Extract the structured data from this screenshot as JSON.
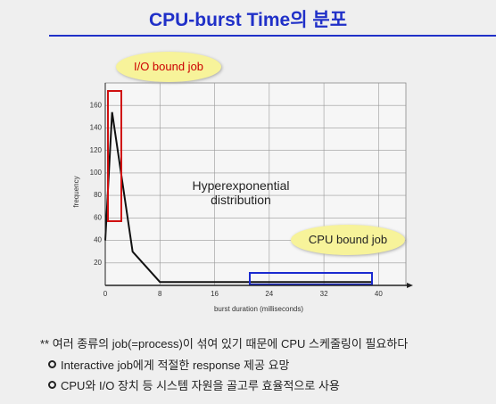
{
  "slide": {
    "title": "CPU-burst Time의 분포",
    "note": "** 여러 종류의 job(=process)이 섞여 있기 때문에 CPU 스케줄링이 필요하다",
    "bullets": [
      "Interactive job에게 적절한 response 제공 요망",
      "CPU와 I/O 장치 등 시스템 자원을 골고루 효율적으로 사용"
    ]
  },
  "chart_data": {
    "type": "line",
    "x_label": "burst duration (milliseconds)",
    "y_label": "frequency",
    "x": [
      0,
      1,
      4,
      8,
      39
    ],
    "values": [
      40,
      154,
      30,
      3,
      3
    ],
    "color": "#111111",
    "xlim": [
      0,
      44
    ],
    "ylim": [
      0,
      180
    ],
    "xticks": [
      0,
      8,
      16,
      24,
      32,
      40
    ],
    "yticks": [
      20,
      40,
      60,
      80,
      100,
      120,
      140,
      160
    ],
    "grid": true,
    "annotations": [
      "I/O bound job",
      "Hyperexponential distribution",
      "CPU bound job"
    ]
  }
}
